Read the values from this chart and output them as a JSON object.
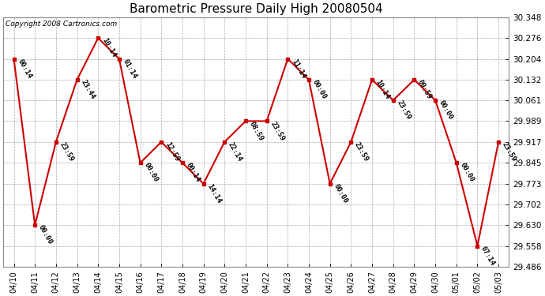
{
  "title": "Barometric Pressure Daily High 20080504",
  "copyright": "Copyright 2008 Cartronics.com",
  "dates": [
    "04/10",
    "04/11",
    "04/12",
    "04/13",
    "04/14",
    "04/15",
    "04/16",
    "04/17",
    "04/18",
    "04/19",
    "04/20",
    "04/21",
    "04/22",
    "04/23",
    "04/24",
    "04/25",
    "04/26",
    "04/27",
    "04/28",
    "04/29",
    "04/30",
    "05/01",
    "05/02",
    "05/03"
  ],
  "values": [
    30.204,
    29.63,
    29.917,
    30.132,
    30.276,
    30.204,
    29.845,
    29.917,
    29.845,
    29.773,
    29.917,
    29.989,
    29.989,
    30.204,
    30.132,
    29.773,
    29.917,
    30.132,
    30.061,
    30.132,
    30.061,
    29.845,
    29.558,
    29.917
  ],
  "times": [
    "00:14",
    "00:00",
    "23:59",
    "23:44",
    "10:14",
    "01:14",
    "00:00",
    "12:59",
    "00:14",
    "14:14",
    "22:14",
    "08:59",
    "23:59",
    "11:14",
    "00:00",
    "00:00",
    "23:59",
    "10:14",
    "23:59",
    "09:59",
    "00:00",
    "00:00",
    "07:14",
    "23:59"
  ],
  "ylim_min": 29.486,
  "ylim_max": 30.348,
  "yticks": [
    29.486,
    29.558,
    29.63,
    29.702,
    29.773,
    29.845,
    29.917,
    29.989,
    30.061,
    30.132,
    30.204,
    30.276,
    30.348
  ],
  "line_color": "#cc0000",
  "marker_color": "#cc0000",
  "bg_color": "#ffffff",
  "grid_color": "#aaaaaa",
  "title_fontsize": 11,
  "annot_fontsize": 6.5,
  "copyright_fontsize": 6.5
}
